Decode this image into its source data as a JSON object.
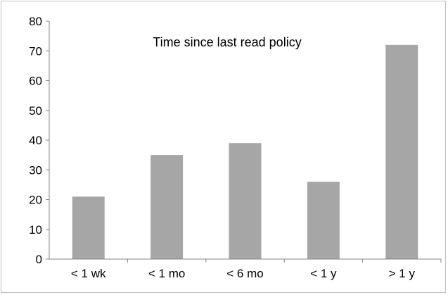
{
  "chart_data": {
    "type": "bar",
    "title": "Time since last read policy",
    "categories": [
      "< 1 wk",
      "< 1 mo",
      "< 6 mo",
      "< 1 y",
      "> 1 y"
    ],
    "values": [
      21,
      35,
      39,
      26,
      72
    ],
    "ylim": [
      0,
      80
    ],
    "yticks": [
      "0",
      "10",
      "20",
      "30",
      "40",
      "50",
      "60",
      "70",
      "80"
    ],
    "xlabel": "",
    "ylabel": "",
    "grid": false,
    "legend": "none",
    "bar_color": "#a6a6a6",
    "axis_color": "#868686"
  }
}
